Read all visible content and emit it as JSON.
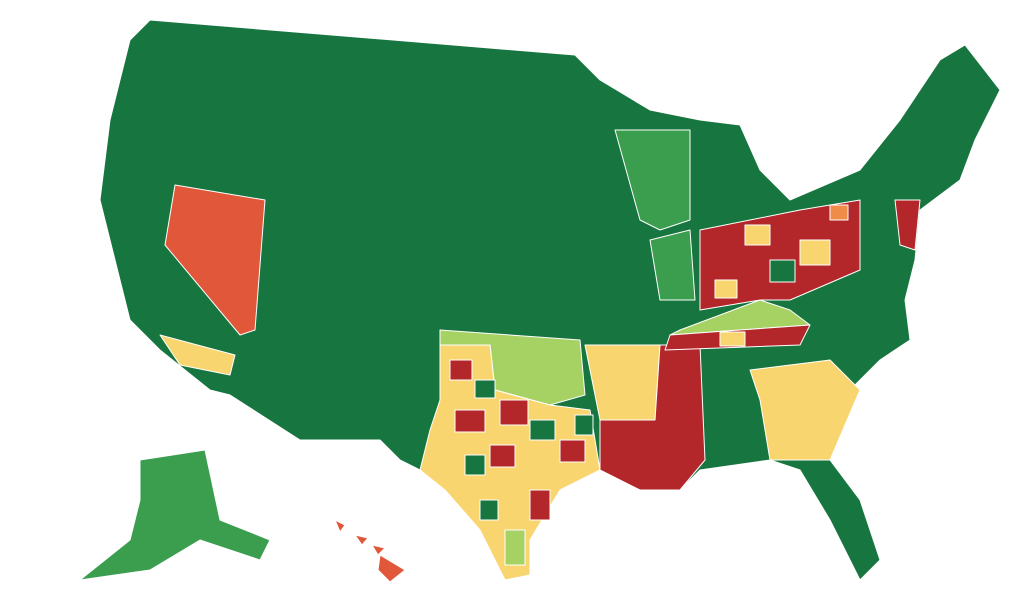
{
  "map": {
    "palette": [
      "#17753f",
      "#3a9e4e",
      "#a6d264",
      "#f8d56e",
      "#e0573a",
      "#b3272b",
      "#f08c4a"
    ]
  }
}
